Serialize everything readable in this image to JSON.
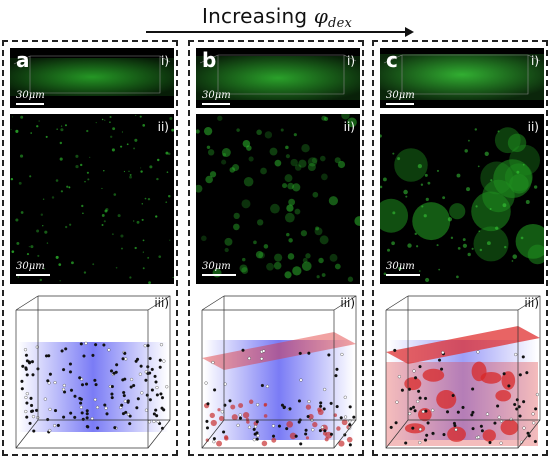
{
  "title": {
    "prefix": "Increasing ",
    "phi": "φ",
    "sub": "dex"
  },
  "columns": [
    {
      "letter": "a",
      "roman": [
        "i)",
        "ii)",
        "iii)"
      ],
      "scale": "30μm"
    },
    {
      "letter": "b",
      "roman": [
        "i)",
        "ii)",
        "iii)"
      ],
      "scale": "30μm"
    },
    {
      "letter": "c",
      "roman": [
        "i)",
        "ii)",
        "iii)"
      ],
      "scale": "30μm"
    }
  ],
  "colors": {
    "fluorescence": "#2ecc2e",
    "blue": "#5a5cf0",
    "red": "#e03030"
  }
}
